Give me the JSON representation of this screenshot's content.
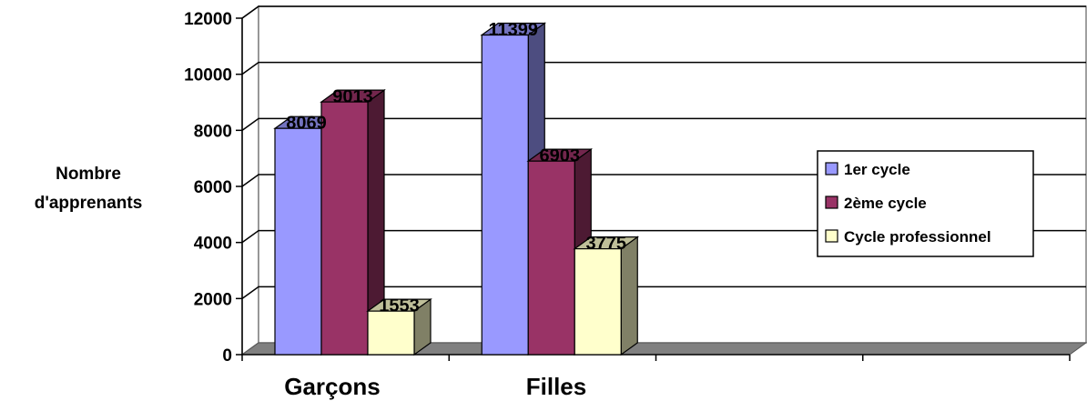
{
  "chart_data": {
    "type": "bar",
    "categories": [
      "Garçons",
      "Filles"
    ],
    "series": [
      {
        "name": "1er cycle",
        "values": [
          8069,
          11399
        ],
        "color": "#9999FF"
      },
      {
        "name": "2ème cycle",
        "values": [
          9013,
          6903
        ],
        "color": "#993366"
      },
      {
        "name": "Cycle professionnel",
        "values": [
          1553,
          3775
        ],
        "color": "#FFFFCC"
      }
    ],
    "title": "",
    "xlabel": "",
    "ylabel": [
      "Nombre",
      "d'apprenants"
    ],
    "ylim": [
      0,
      12000
    ],
    "yticks": [
      0,
      2000,
      4000,
      6000,
      8000,
      10000,
      12000
    ],
    "grid": true,
    "legend_position": "right",
    "style": "3d"
  }
}
